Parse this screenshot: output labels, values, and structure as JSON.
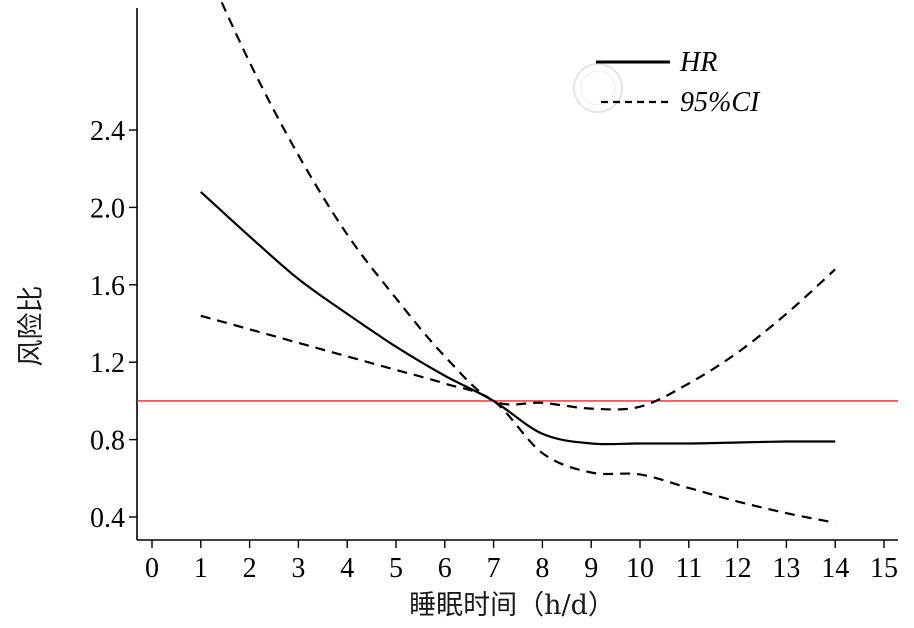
{
  "chart_data": {
    "type": "line",
    "title": "",
    "xlabel": "睡眠时间（h/d）",
    "ylabel": "风险比",
    "xlim": [
      0,
      15
    ],
    "ylim": [
      0.3,
      3.3
    ],
    "x_ticks": [
      0,
      1,
      2,
      3,
      4,
      5,
      6,
      7,
      8,
      9,
      10,
      11,
      12,
      13,
      14,
      15
    ],
    "x_tick_labels": [
      "0",
      "1",
      "2",
      "3",
      "4",
      "5",
      "6",
      "7",
      "8",
      "9",
      "10",
      "11",
      "12",
      "13",
      "14",
      "15"
    ],
    "y_ticks": [
      0.4,
      0.8,
      1.2,
      1.6,
      2.0,
      2.4
    ],
    "y_tick_labels": [
      "0.4",
      "0.8",
      "1.2",
      "1.6",
      "2.0",
      "2.4"
    ],
    "reference_line": {
      "y": 1.0,
      "color": "#e8262b"
    },
    "legend": {
      "position": "top-right",
      "entries": [
        "HR",
        "95%CI"
      ]
    },
    "series": [
      {
        "name": "HR",
        "style": "solid",
        "color": "#000000",
        "x": [
          1,
          2,
          3,
          4,
          5,
          6,
          7,
          8,
          9,
          10,
          11,
          12,
          13,
          14
        ],
        "y": [
          2.08,
          1.85,
          1.63,
          1.45,
          1.28,
          1.13,
          1.0,
          0.83,
          0.78,
          0.78,
          0.78,
          0.785,
          0.79,
          0.79
        ]
      },
      {
        "name": "95%CI upper",
        "style": "dashed",
        "color": "#000000",
        "x": [
          1,
          2,
          3,
          4,
          5,
          6,
          7,
          8,
          9,
          10,
          11,
          12,
          13,
          14
        ],
        "y": [
          3.3,
          2.75,
          2.27,
          1.86,
          1.53,
          1.23,
          1.0,
          0.99,
          0.96,
          0.97,
          1.09,
          1.25,
          1.45,
          1.68
        ]
      },
      {
        "name": "95%CI lower",
        "style": "dashed",
        "color": "#000000",
        "x": [
          1,
          2,
          3,
          4,
          5,
          6,
          7,
          8,
          9,
          10,
          11,
          12,
          13,
          14
        ],
        "y": [
          1.44,
          1.37,
          1.3,
          1.23,
          1.16,
          1.09,
          1.0,
          0.73,
          0.63,
          0.62,
          0.55,
          0.48,
          0.42,
          0.37
        ]
      }
    ]
  }
}
